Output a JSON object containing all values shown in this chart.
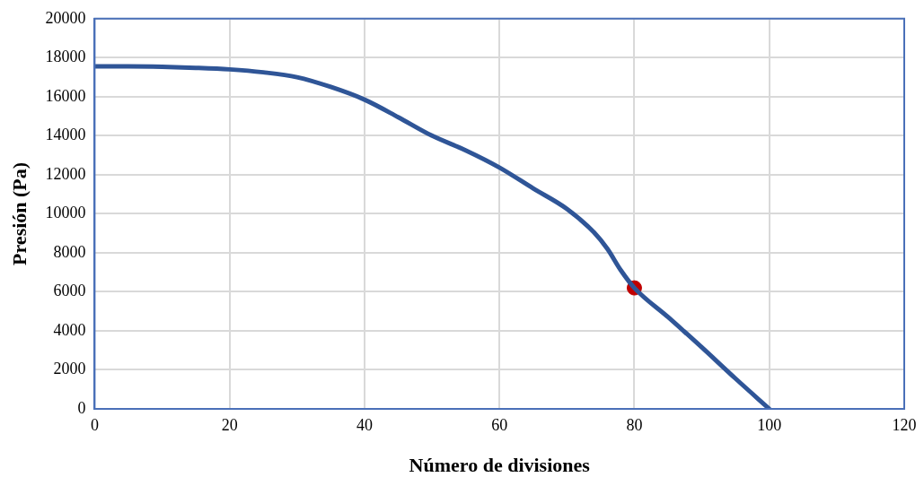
{
  "chart_data": {
    "type": "line",
    "xlabel": "Número de divisiones",
    "ylabel": "Presión (Pa)",
    "xlim": [
      0,
      120
    ],
    "xticks": [
      0,
      20,
      40,
      60,
      80,
      100,
      120
    ],
    "ylim": [
      0,
      20000
    ],
    "yticks": [
      0,
      2000,
      4000,
      6000,
      8000,
      10000,
      12000,
      14000,
      16000,
      18000,
      20000
    ],
    "grid": true,
    "legend": false,
    "series": [
      {
        "type": "line",
        "color": "#2f5597",
        "marker": "none",
        "x": [
          0,
          5,
          10,
          15,
          20,
          25,
          30,
          35,
          40,
          45,
          50,
          55,
          60,
          65,
          70,
          74,
          76,
          78,
          80,
          85,
          90,
          95,
          100
        ],
        "values": [
          17550,
          17550,
          17530,
          17480,
          17400,
          17250,
          17000,
          16500,
          15850,
          14950,
          14000,
          13250,
          12370,
          11300,
          10250,
          9050,
          8200,
          7100,
          6200,
          4700,
          3150,
          1550,
          0
        ]
      },
      {
        "type": "scatter",
        "color": "#c00000",
        "marker": "circle",
        "x": [
          80
        ],
        "values": [
          6200
        ]
      }
    ]
  }
}
